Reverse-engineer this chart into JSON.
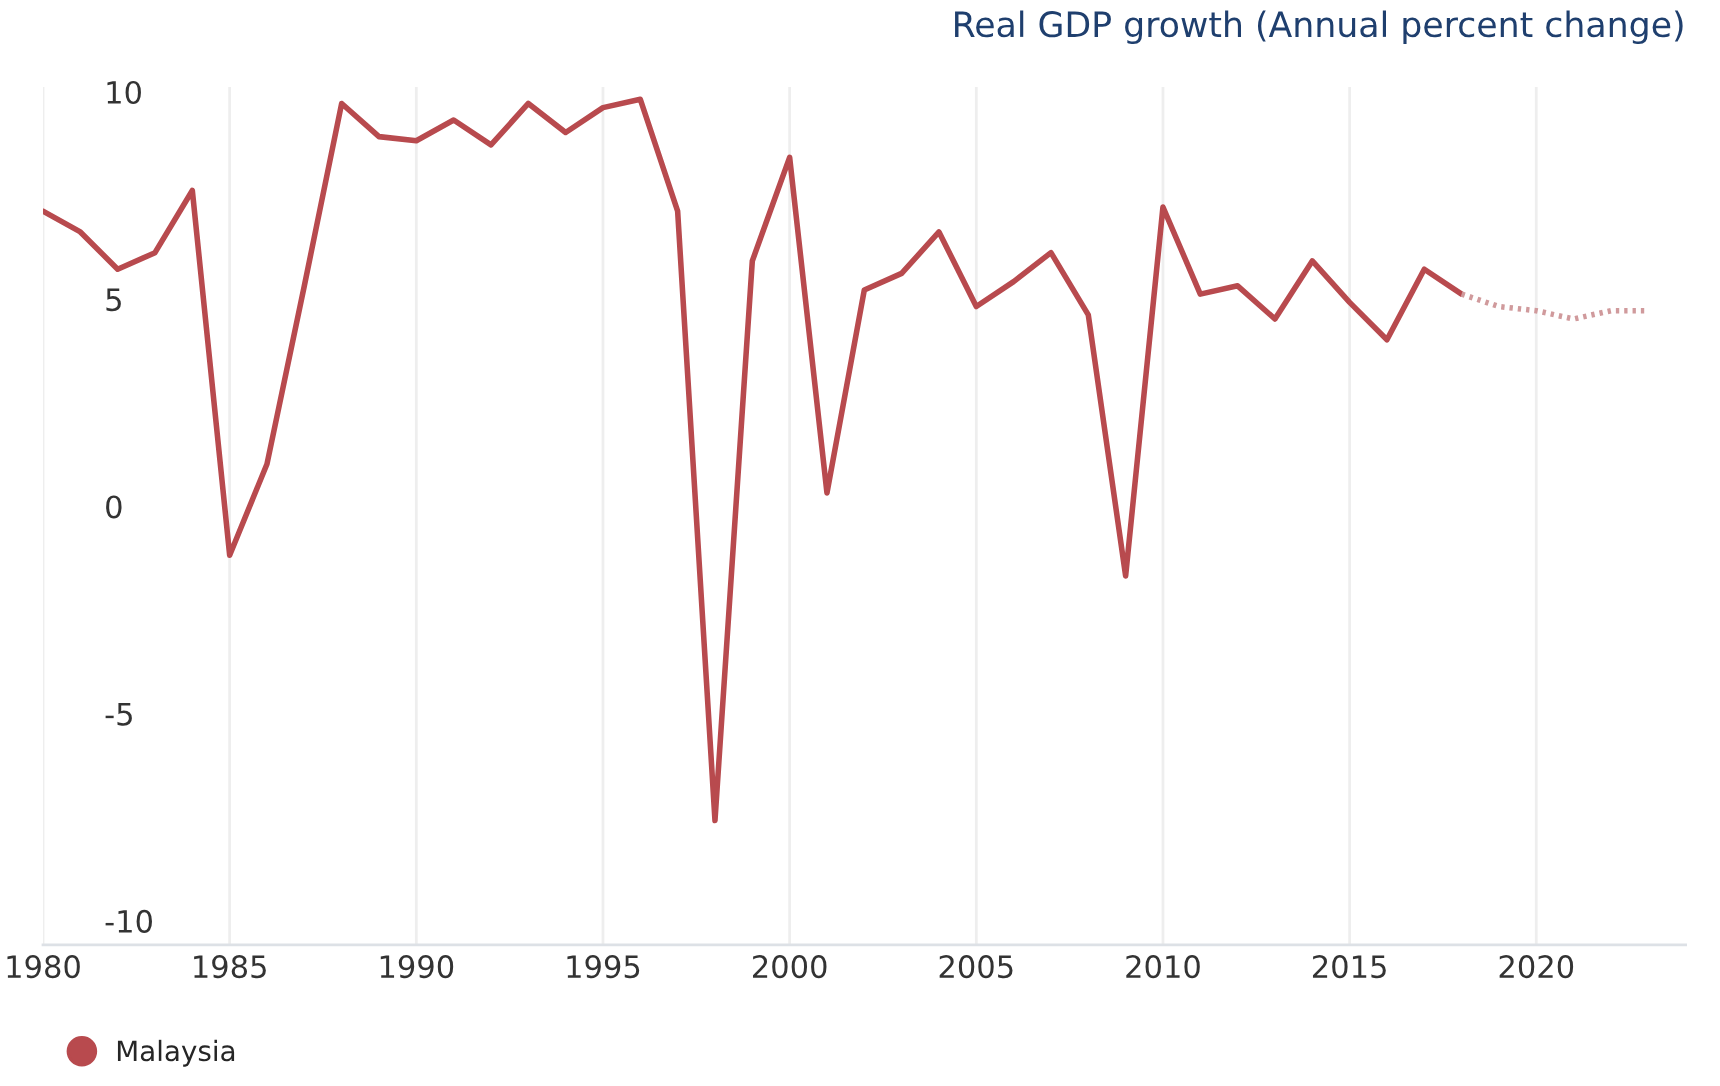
{
  "chart_data": {
    "type": "line",
    "title": "Real GDP growth (Annual percent change)",
    "series": [
      {
        "name": "Malaysia",
        "color": "#b84a4e",
        "line_style": "solid",
        "x": [
          1980,
          1981,
          1982,
          1983,
          1984,
          1985,
          1986,
          1987,
          1988,
          1989,
          1990,
          1991,
          1992,
          1993,
          1994,
          1995,
          1996,
          1997,
          1998,
          1999,
          2000,
          2001,
          2002,
          2003,
          2004,
          2005,
          2006,
          2007,
          2008,
          2009,
          2010,
          2011,
          2012,
          2013,
          2014,
          2015,
          2016,
          2017,
          2018
        ],
        "values": [
          7.2,
          6.7,
          5.8,
          6.2,
          7.7,
          -1.1,
          1.1,
          5.4,
          9.8,
          9.0,
          8.9,
          9.4,
          8.8,
          9.8,
          9.1,
          9.7,
          9.9,
          7.2,
          -7.5,
          6.0,
          8.5,
          0.4,
          5.3,
          5.7,
          6.7,
          4.9,
          5.5,
          6.2,
          4.7,
          -1.6,
          7.3,
          5.2,
          5.4,
          4.6,
          6.0,
          5.0,
          4.1,
          5.8,
          5.2
        ]
      },
      {
        "color": "#d09a9c",
        "line_style": "dotted",
        "x": [
          2018,
          2019,
          2020,
          2021,
          2022,
          2023
        ],
        "values": [
          5.2,
          4.9,
          4.8,
          4.6,
          4.8,
          4.8
        ]
      }
    ],
    "xlim": [
      1980,
      2024
    ],
    "xticks": [
      1980,
      1985,
      1990,
      1995,
      2000,
      2005,
      2010,
      2015,
      2020
    ],
    "ylim": [
      -10.5,
      10.2
    ],
    "yticks": [
      -10,
      -5,
      0,
      5,
      10
    ],
    "grid": "x",
    "legend": "bottom left",
    "marker": "none"
  }
}
